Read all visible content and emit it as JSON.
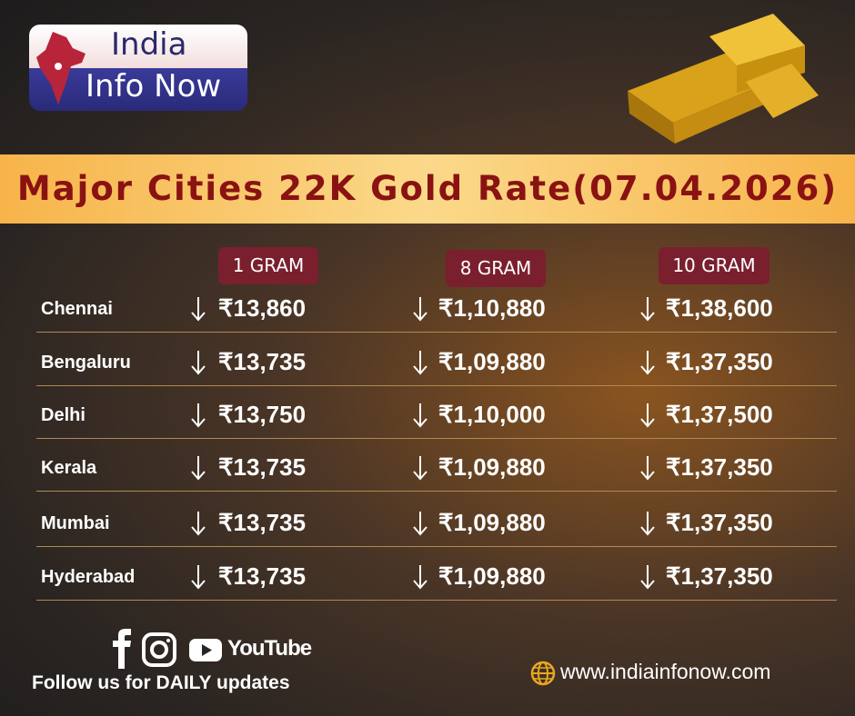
{
  "logo": {
    "line1": "India",
    "line2": "Info Now"
  },
  "title": "Major Cities 22K Gold Rate(07.04.2026)",
  "table": {
    "headers": [
      "1 GRAM",
      "8 GRAM",
      "10 GRAM"
    ],
    "rows": [
      [
        "Chennai",
        "₹13,860",
        "₹1,10,880",
        "₹1,38,600"
      ],
      [
        "Bengaluru",
        "₹13,735",
        "₹1,09,880",
        "₹1,37,350"
      ],
      [
        "Delhi",
        "₹13,750",
        "₹1,10,000",
        "₹1,37,500"
      ],
      [
        "Kerala",
        "₹13,735",
        "₹1,09,880",
        "₹1,37,350"
      ],
      [
        "Mumbai",
        "₹13,735",
        "₹1,09,880",
        "₹1,37,350"
      ],
      [
        "Hyderabad",
        "₹13,735",
        "₹1,09,880",
        "₹1,37,350"
      ]
    ]
  },
  "footer": {
    "youtube": "YouTube",
    "follow": "Follow  us for DAILY updates",
    "website": "www.indiainfonow.com"
  }
}
